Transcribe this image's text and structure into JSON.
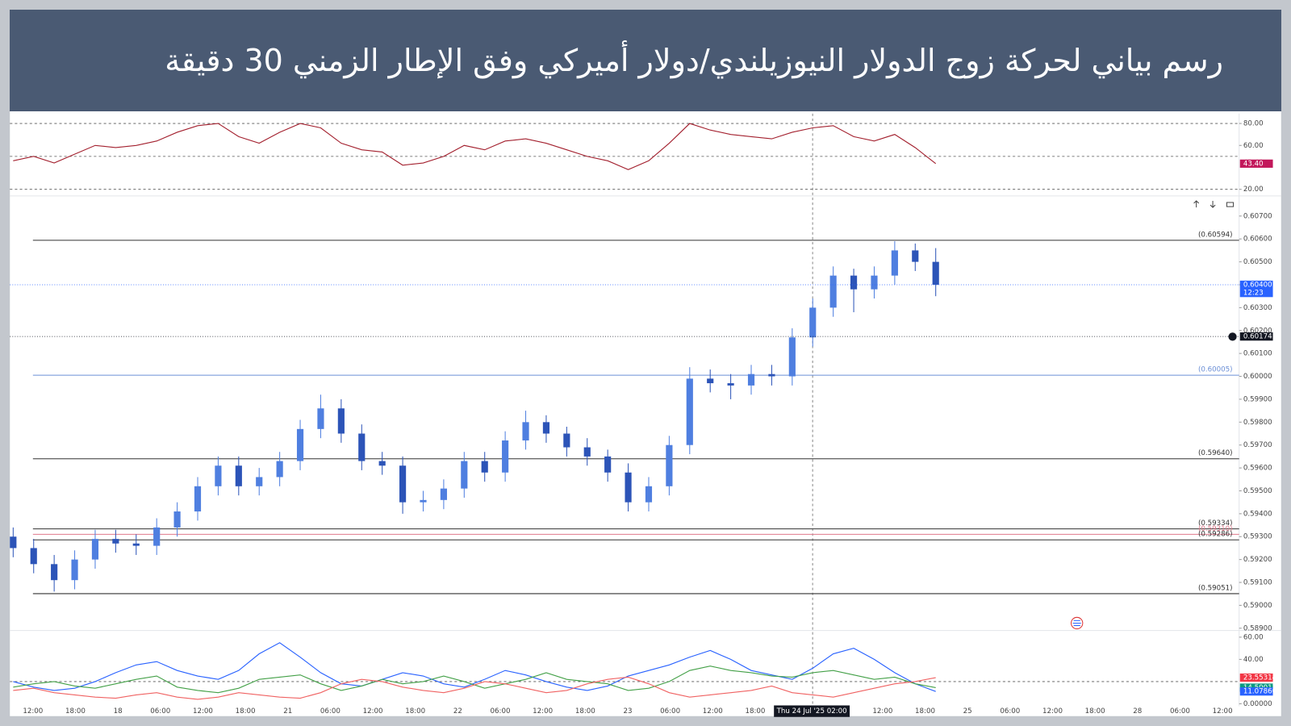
{
  "header": {
    "title": "رسم بياني لحركة زوج الدولار النيوزيلندي/دولار أميركي وفق الإطار الزمني 30 دقيقة"
  },
  "chart_data": [
    {
      "type": "line",
      "series": [
        {
          "color": "#a3202e",
          "values": [
            46,
            50,
            44,
            52,
            60,
            58,
            60,
            64,
            72,
            78,
            80,
            68,
            62,
            72,
            80,
            76,
            62,
            56,
            54,
            42,
            44,
            50,
            60,
            56,
            64,
            66,
            62,
            56,
            50,
            46,
            38,
            46,
            62,
            80,
            74,
            70,
            68,
            66,
            72,
            76,
            78,
            68,
            64,
            70,
            58,
            43.4
          ]
        }
      ],
      "ylim": [
        14,
        89
      ],
      "yticks": [
        {
          "value": 80,
          "label": "80.00"
        },
        {
          "value": 60,
          "label": "60.00"
        },
        {
          "value": 20,
          "label": "20.00"
        }
      ],
      "reference_lines": [
        80,
        50,
        20
      ],
      "markers": [
        {
          "value": 43.4,
          "label": "43.40",
          "color": "#c2185b"
        }
      ]
    },
    {
      "type": "candlestick",
      "open": [
        0.593,
        0.5925,
        0.5918,
        0.5911,
        0.592,
        0.5929,
        0.5927,
        0.5926,
        0.5934,
        0.5941,
        0.5952,
        0.5961,
        0.5952,
        0.5956,
        0.5963,
        0.5977,
        0.5986,
        0.5975,
        0.5963,
        0.5961,
        0.5945,
        0.5946,
        0.5951,
        0.5963,
        0.5958,
        0.5972,
        0.598,
        0.5975,
        0.5969,
        0.5965,
        0.5958,
        0.5945,
        0.5952,
        0.597,
        0.5999,
        0.5997,
        0.5996,
        0.6001,
        0.6,
        0.6017,
        0.603,
        0.6044,
        0.6038,
        0.6044,
        0.6055,
        0.605
      ],
      "high": [
        0.5934,
        0.5929,
        0.5922,
        0.5924,
        0.5933,
        0.5933,
        0.5931,
        0.5938,
        0.5945,
        0.5956,
        0.5965,
        0.5965,
        0.596,
        0.5967,
        0.5981,
        0.5992,
        0.599,
        0.5979,
        0.5967,
        0.5965,
        0.595,
        0.5955,
        0.5967,
        0.5967,
        0.5976,
        0.5985,
        0.5983,
        0.5978,
        0.5973,
        0.5968,
        0.5962,
        0.5956,
        0.5974,
        0.6004,
        0.6003,
        0.6001,
        0.6005,
        0.6005,
        0.6021,
        0.6034,
        0.6048,
        0.6047,
        0.6048,
        0.6059,
        0.6058,
        0.6056
      ],
      "low": [
        0.5921,
        0.5914,
        0.5906,
        0.5907,
        0.5916,
        0.5923,
        0.5922,
        0.5922,
        0.593,
        0.5937,
        0.5948,
        0.5948,
        0.5948,
        0.5952,
        0.5959,
        0.5973,
        0.5971,
        0.5959,
        0.5957,
        0.594,
        0.5941,
        0.5942,
        0.5947,
        0.5954,
        0.5954,
        0.5968,
        0.5971,
        0.5965,
        0.5961,
        0.5954,
        0.5941,
        0.5941,
        0.5948,
        0.5966,
        0.5993,
        0.599,
        0.5992,
        0.5996,
        0.5996,
        0.6013,
        0.6026,
        0.6028,
        0.6034,
        0.604,
        0.6046,
        0.6035
      ],
      "close": [
        0.5925,
        0.5918,
        0.5911,
        0.592,
        0.5929,
        0.5927,
        0.5926,
        0.5934,
        0.5941,
        0.5952,
        0.5961,
        0.5952,
        0.5956,
        0.5963,
        0.5977,
        0.5986,
        0.5975,
        0.5963,
        0.5961,
        0.5945,
        0.5946,
        0.5951,
        0.5963,
        0.5958,
        0.5972,
        0.598,
        0.5975,
        0.5969,
        0.5965,
        0.5958,
        0.5945,
        0.5952,
        0.597,
        0.5999,
        0.5997,
        0.5996,
        0.6001,
        0.6,
        0.6017,
        0.603,
        0.6044,
        0.6038,
        0.6044,
        0.6055,
        0.605,
        0.604
      ],
      "up_color": "#4f7fe0",
      "down_color": "#2c54b8",
      "ylim": [
        0.5889,
        0.6077
      ],
      "yticks": [
        {
          "value": 0.607,
          "label": "0.60700"
        },
        {
          "value": 0.606,
          "label": "0.60600"
        },
        {
          "value": 0.605,
          "label": "0.60500"
        },
        {
          "value": 0.604,
          "label": "0.60400"
        },
        {
          "value": 0.603,
          "label": "0.60300"
        },
        {
          "value": 0.602,
          "label": "0.60200"
        },
        {
          "value": 0.601,
          "label": "0.60100"
        },
        {
          "value": 0.6,
          "label": "0.60000"
        },
        {
          "value": 0.599,
          "label": "0.59900"
        },
        {
          "value": 0.598,
          "label": "0.59800"
        },
        {
          "value": 0.597,
          "label": "0.59700"
        },
        {
          "value": 0.596,
          "label": "0.59600"
        },
        {
          "value": 0.595,
          "label": "0.59500"
        },
        {
          "value": 0.594,
          "label": "0.59400"
        },
        {
          "value": 0.593,
          "label": "0.59300"
        },
        {
          "value": 0.592,
          "label": "0.59200"
        },
        {
          "value": 0.591,
          "label": "0.59100"
        },
        {
          "value": 0.59,
          "label": "0.59000"
        },
        {
          "value": 0.589,
          "label": "0.58900"
        }
      ],
      "levels": [
        {
          "value": 0.60594,
          "label": "(0.60594)",
          "color": "#333333"
        },
        {
          "value": 0.60005,
          "label": "(0.60005)",
          "color": "#6b8fd6"
        },
        {
          "value": 0.5964,
          "label": "(0.59640)",
          "color": "#333333"
        },
        {
          "value": 0.59334,
          "label": "(0.59334)",
          "color": "#333333"
        },
        {
          "value": 0.5931,
          "label": "(0.59310)",
          "color": "#e07a8c"
        },
        {
          "value": 0.59286,
          "label": "(0.59286)",
          "color": "#333333"
        },
        {
          "value": 0.59051,
          "label": "(0.59051)",
          "color": "#333333"
        }
      ],
      "markers": [
        {
          "value": 0.604,
          "label": "0.60400",
          "sublabel": "12:23",
          "color": "#2962ff"
        },
        {
          "value": 0.60174,
          "label": "0.60174",
          "color": "#131722"
        }
      ]
    },
    {
      "type": "line",
      "series": [
        {
          "color": "#2962ff",
          "values": [
            20,
            15,
            12,
            14,
            20,
            28,
            35,
            38,
            30,
            25,
            22,
            30,
            45,
            55,
            42,
            28,
            18,
            16,
            22,
            28,
            25,
            18,
            15,
            22,
            30,
            26,
            20,
            15,
            12,
            16,
            25,
            30,
            35,
            42,
            48,
            40,
            30,
            26,
            22,
            32,
            45,
            50,
            40,
            28,
            18,
            11.0786
          ]
        },
        {
          "color": "#43a047",
          "values": [
            15,
            18,
            20,
            16,
            14,
            18,
            22,
            25,
            15,
            12,
            10,
            14,
            22,
            24,
            26,
            18,
            12,
            16,
            22,
            18,
            20,
            25,
            20,
            14,
            18,
            22,
            28,
            22,
            20,
            18,
            12,
            14,
            20,
            30,
            34,
            30,
            28,
            25,
            24,
            28,
            30,
            26,
            22,
            24,
            18,
            14.50017
          ]
        },
        {
          "color": "#f06262",
          "values": [
            12,
            14,
            10,
            8,
            6,
            5,
            8,
            10,
            6,
            4,
            6,
            10,
            8,
            6,
            5,
            10,
            18,
            22,
            20,
            15,
            12,
            10,
            14,
            20,
            18,
            14,
            10,
            12,
            18,
            22,
            24,
            18,
            10,
            6,
            8,
            10,
            12,
            16,
            10,
            8,
            6,
            10,
            14,
            18,
            20,
            23.55314
          ]
        }
      ],
      "ylim": [
        -1.5,
        66
      ],
      "yticks": [
        {
          "value": 60,
          "label": "60.00"
        },
        {
          "value": 40,
          "label": "40.00"
        },
        {
          "value": 0,
          "label": "0.00000"
        }
      ],
      "reference_lines": [
        20
      ],
      "markers": [
        {
          "value": 23.55314,
          "label": "23.55314",
          "color": "#f23645"
        },
        {
          "value": 14.50017,
          "label": "14.50017",
          "color": "#089981"
        },
        {
          "value": 11.0786,
          "label": "11.07860",
          "color": "#2962ff"
        }
      ],
      "x_axis_labels": [
        "12:00",
        "18:00",
        "18",
        "06:00",
        "12:00",
        "18:00",
        "21",
        "06:00",
        "12:00",
        "18:00",
        "22",
        "06:00",
        "12:00",
        "18:00",
        "23",
        "06:00",
        "12:00",
        "18:00",
        null,
        null,
        "12:00",
        "18:00",
        "25",
        "06:00",
        "12:00",
        "18:00",
        "28",
        "06:00",
        "12:00"
      ],
      "crosshair_label": "Thu 24 Jul '25  02:00"
    }
  ]
}
